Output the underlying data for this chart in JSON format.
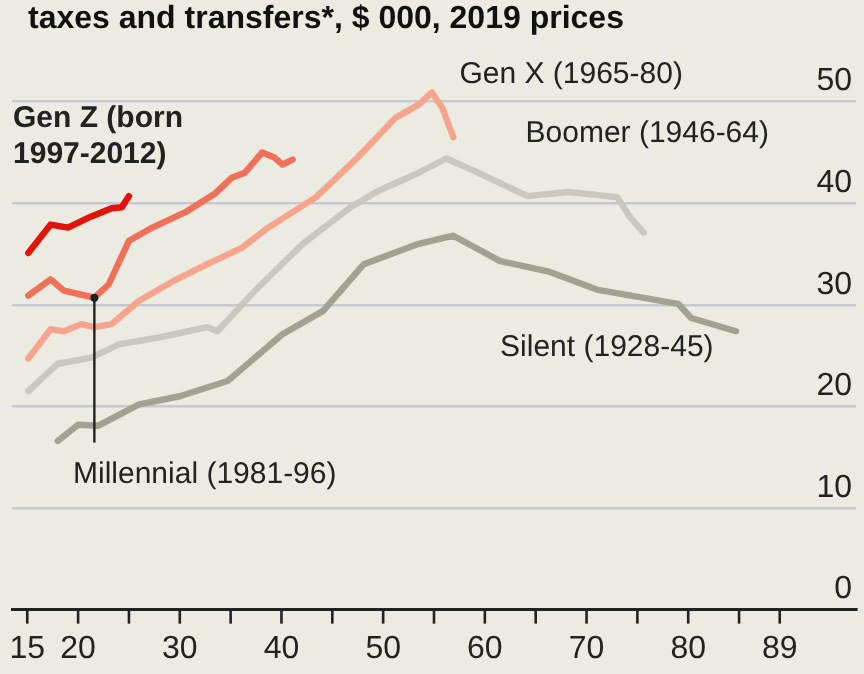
{
  "chart_data": {
    "type": "line",
    "subtitle": "taxes and transfers*, $ 000, 2019 prices",
    "xlim": [
      13.5,
      96.5
    ],
    "xticks": [
      15,
      20,
      {
        "value": 25,
        "label": null
      },
      30,
      {
        "value": 35,
        "label": null
      },
      40,
      {
        "value": 45,
        "label": null
      },
      50,
      {
        "value": 55,
        "label": null
      },
      60,
      {
        "value": 65,
        "label": null
      },
      70,
      {
        "value": 75,
        "label": null
      },
      80,
      {
        "value": 85,
        "label": null
      },
      89
    ],
    "ylim": [
      0,
      60
    ],
    "yticks": [
      0,
      10,
      20,
      30,
      40,
      50
    ],
    "grid": "y",
    "legend": false,
    "marker": "none",
    "line_style": "solid",
    "series": [
      {
        "name": "Gen Z (born 1997-2012)",
        "color": "#e3120b",
        "x": [
          15.1,
          17.3,
          19.0,
          21.3,
          23.3,
          24.3,
          25.0
        ],
        "values": [
          35.1,
          37.9,
          37.6,
          38.7,
          39.5,
          39.6,
          40.7
        ]
      },
      {
        "name": "Millennial (1981-96)",
        "color": "#f0705a",
        "x": [
          15.1,
          17.3,
          18.6,
          21.6,
          23.0,
          25.0,
          27.3,
          30.7,
          33.4,
          35.1,
          36.4,
          38.1,
          39.3,
          40.1,
          41.1
        ],
        "values": [
          30.9,
          32.5,
          31.4,
          30.7,
          32.0,
          36.3,
          37.6,
          39.2,
          40.9,
          42.5,
          43.0,
          45.0,
          44.5,
          43.8,
          44.3
        ]
      },
      {
        "name": "Gen X (1965-80)",
        "color": "#f6a58c",
        "x": [
          15.1,
          17.3,
          18.6,
          20.3,
          21.6,
          23.3,
          26.0,
          29.3,
          32.7,
          36.1,
          38.7,
          43.4,
          47.5,
          51.2,
          53.5,
          54.8,
          55.8,
          56.9
        ],
        "values": [
          24.7,
          27.6,
          27.4,
          28.1,
          27.8,
          28.1,
          30.4,
          32.3,
          34.0,
          35.6,
          37.6,
          40.6,
          44.5,
          48.4,
          49.7,
          50.9,
          49.4,
          46.5
        ]
      },
      {
        "name": "Boomer (1946-64)",
        "color": "#c8c8be",
        "x": [
          15.1,
          18.0,
          21.3,
          24.0,
          28.0,
          32.7,
          33.7,
          37.4,
          42.1,
          46.8,
          49.5,
          53.5,
          56.2,
          58.9,
          64.2,
          68.2,
          73.0,
          74.3,
          75.6
        ],
        "values": [
          21.5,
          24.2,
          24.8,
          26.1,
          26.8,
          27.8,
          27.4,
          31.4,
          36.0,
          39.6,
          41.2,
          43.0,
          44.4,
          43.2,
          40.7,
          41.1,
          40.6,
          38.6,
          37.1
        ]
      },
      {
        "name": "Silent (1928-45)",
        "color": "#a2a293",
        "x": [
          18.0,
          20.0,
          22.0,
          26.0,
          30.0,
          34.7,
          37.4,
          40.1,
          44.1,
          48.1,
          53.5,
          56.9,
          61.5,
          66.2,
          71.0,
          79.0,
          80.3,
          84.7
        ],
        "values": [
          16.6,
          18.2,
          18.1,
          20.2,
          21.0,
          22.5,
          24.8,
          27.1,
          29.4,
          34.0,
          36.0,
          36.8,
          34.3,
          33.3,
          31.5,
          30.1,
          28.7,
          27.4
        ]
      }
    ]
  }
}
